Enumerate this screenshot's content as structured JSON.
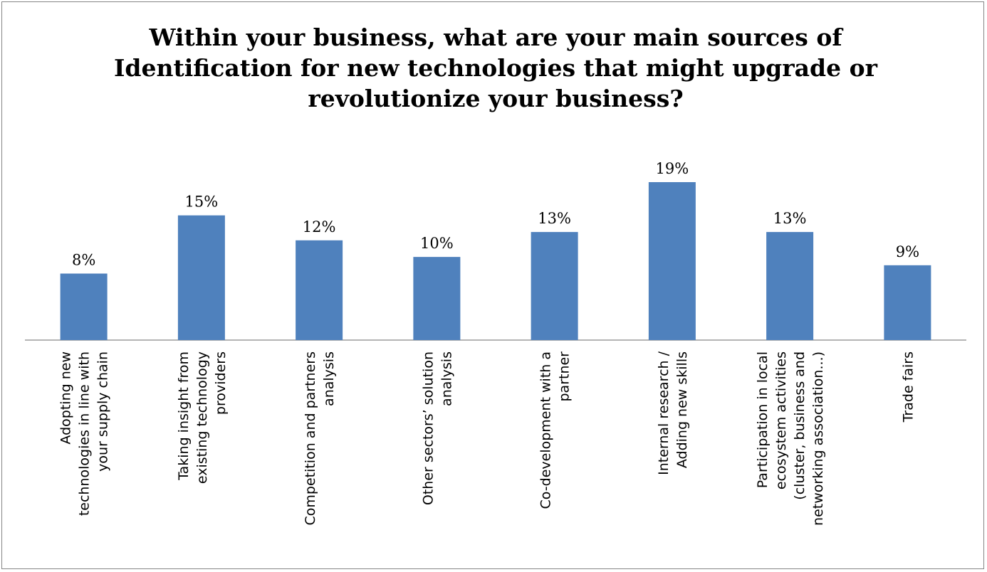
{
  "chart_data": {
    "type": "bar",
    "title": "Within your business, what are your main sources of\nIdentification for new technologies that might upgrade or\nrevolutionize your business?",
    "xlabel": "",
    "ylabel": "",
    "ylim": [
      0,
      0.19
    ],
    "grid": false,
    "legend": "none",
    "color": "#4f81bd",
    "categories": [
      [
        "Adopting new",
        "technologies in line with",
        "your supply chain"
      ],
      [
        "Taking insight from",
        "existing technology",
        "providers"
      ],
      [
        "Competition and partners",
        "analysis"
      ],
      [
        "Other sectors’ solution",
        "analysis"
      ],
      [
        "Co-development with a",
        "partner"
      ],
      [
        "Internal research /",
        "Adding new skills"
      ],
      [
        "Participation in local",
        "ecosystem activities",
        "(cluster, business and",
        "networking association...)"
      ],
      [
        "Trade fairs"
      ]
    ],
    "values": [
      0.08,
      0.15,
      0.12,
      0.1,
      0.13,
      0.19,
      0.13,
      0.09
    ],
    "data_labels": [
      "8%",
      "15%",
      "12%",
      "10%",
      "13%",
      "19%",
      "13%",
      "9%"
    ]
  }
}
